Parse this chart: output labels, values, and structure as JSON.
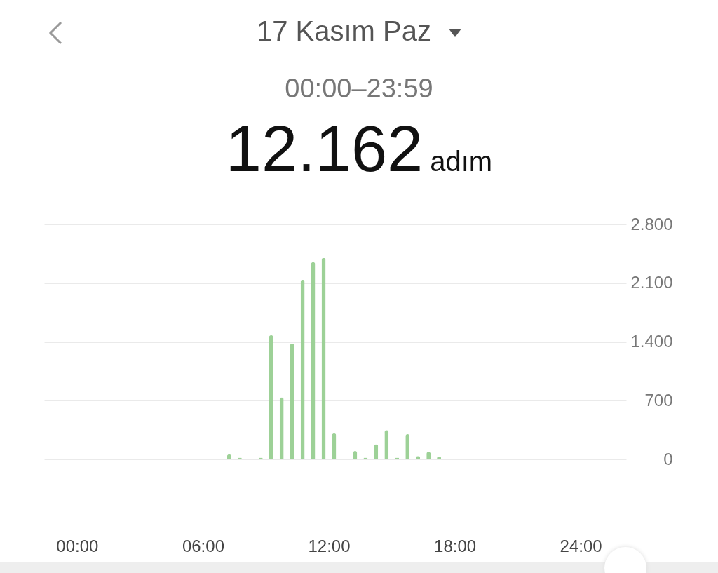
{
  "chart_data": {
    "type": "bar",
    "title": "17 Kasım Paz",
    "subtitle": "00:00–23:59",
    "annotations": [
      "12.162",
      "adım"
    ],
    "x": [
      7.25,
      7.75,
      8.75,
      9.25,
      9.75,
      10.25,
      10.75,
      11.25,
      11.75,
      12.25,
      13.25,
      13.75,
      14.25,
      14.75,
      15.25,
      15.75,
      16.25,
      16.75,
      17.25
    ],
    "values": [
      60,
      20,
      20,
      1480,
      740,
      1380,
      2140,
      2350,
      2400,
      310,
      100,
      20,
      180,
      350,
      20,
      300,
      40,
      90,
      30
    ],
    "color": "#9dd197",
    "xlim": [
      -1.4,
      26
    ],
    "xticks": [
      {
        "value": 0,
        "label": "00:00"
      },
      {
        "value": 6,
        "label": "06:00"
      },
      {
        "value": 12,
        "label": "12:00"
      },
      {
        "value": 18,
        "label": "18:00"
      },
      {
        "value": 24,
        "label": "24:00"
      }
    ],
    "ylim": [
      0,
      2800
    ],
    "yticks": [
      {
        "value": 0,
        "label": "0"
      },
      {
        "value": 700,
        "label": "700"
      },
      {
        "value": 1400,
        "label": "1.400"
      },
      {
        "value": 2100,
        "label": "2.100"
      },
      {
        "value": 2800,
        "label": "2.800"
      }
    ],
    "grid": "y"
  }
}
